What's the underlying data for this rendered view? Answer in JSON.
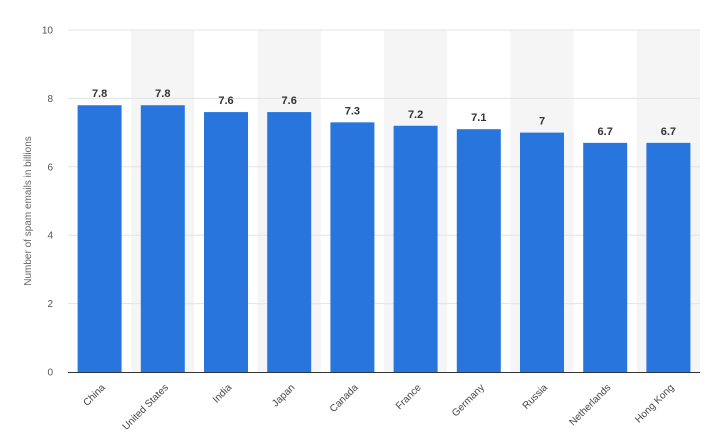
{
  "chart_data": {
    "type": "bar",
    "title": "",
    "xlabel": "",
    "ylabel": "Number of spam emails in billions",
    "categories": [
      "China",
      "United States",
      "India",
      "Japan",
      "Canada",
      "France",
      "Germany",
      "Russia",
      "Netherlands",
      "Hong Kong"
    ],
    "values": [
      7.8,
      7.8,
      7.6,
      7.6,
      7.3,
      7.2,
      7.1,
      7,
      6.7,
      6.7
    ],
    "value_labels": [
      "7.8",
      "7.8",
      "7.6",
      "7.6",
      "7.3",
      "7.2",
      "7.1",
      "7",
      "6.7",
      "6.7"
    ],
    "ylim": [
      0,
      10
    ],
    "yticks": [
      0,
      2,
      4,
      6,
      8,
      10
    ],
    "grid": true,
    "alternating_band": true,
    "colors": {
      "bar": "#2876dd",
      "band": "#f5f5f5",
      "grid": "#e3e3e3",
      "axis": "#333333"
    }
  }
}
